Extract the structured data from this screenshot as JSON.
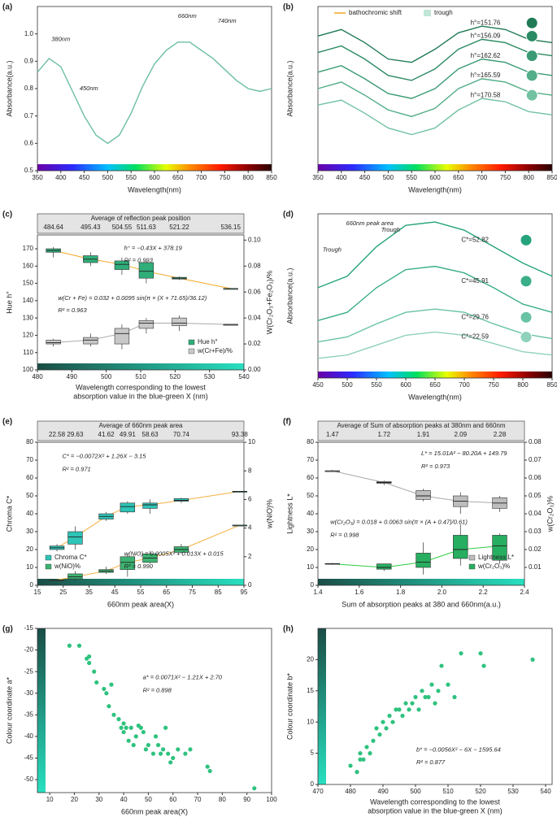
{
  "chart_data": [
    {
      "type": "line",
      "label": "(a)",
      "xlabel": "Wavelength(nm)",
      "ylabel": "Absorbance(a.u.)",
      "colorbar": "spectrum",
      "xlim": [
        350,
        850
      ],
      "xticks": [
        350,
        400,
        450,
        500,
        550,
        600,
        650,
        700,
        750,
        800,
        850
      ],
      "ylim": [
        0.5,
        1.1
      ],
      "yticks": [
        0.5,
        0.6,
        0.7,
        0.8,
        0.9,
        {
          "value": 1,
          "label": "1.0"
        }
      ],
      "x": [
        350,
        375,
        400,
        425,
        450,
        475,
        500,
        525,
        550,
        575,
        600,
        625,
        650,
        675,
        700,
        725,
        750,
        775,
        800,
        825,
        850
      ],
      "series": [
        {
          "color": "#6cbfa0",
          "values": [
            0.86,
            0.91,
            0.88,
            0.79,
            0.7,
            0.63,
            0.6,
            0.63,
            0.71,
            0.81,
            0.89,
            0.94,
            0.97,
            0.97,
            0.94,
            0.91,
            0.87,
            0.83,
            0.8,
            0.79,
            0.8
          ]
        }
      ],
      "annotations": [
        "380nm",
        "450nm",
        "660nm",
        "740nm"
      ]
    },
    {
      "type": "line",
      "label": "(b)",
      "xlabel": "Wavelength(nm)",
      "ylabel": "Absorbance(a.u.)",
      "colorbar": "spectrum",
      "legend": [
        "bathochromic shift",
        "trough"
      ],
      "xlim": [
        350,
        850
      ],
      "xticks": [
        350,
        400,
        450,
        500,
        550,
        600,
        650,
        700,
        750,
        800,
        850
      ],
      "ylim": [
        0,
        1
      ],
      "yticks": [],
      "x": [
        350,
        400,
        450,
        500,
        550,
        600,
        650,
        700,
        750,
        800,
        850
      ],
      "series": [
        {
          "name": "h°=151.76",
          "color": "#1f7a55",
          "values": [
            0.82,
            0.86,
            0.78,
            0.68,
            0.66,
            0.74,
            0.84,
            0.88,
            0.86,
            0.8,
            0.78
          ]
        },
        {
          "name": "h°=156.09",
          "color": "#2a8a62",
          "values": [
            0.72,
            0.76,
            0.68,
            0.58,
            0.55,
            0.62,
            0.74,
            0.8,
            0.78,
            0.72,
            0.7
          ]
        },
        {
          "name": "h°=162.62",
          "color": "#3a9b74",
          "values": [
            0.6,
            0.64,
            0.56,
            0.47,
            0.44,
            0.5,
            0.62,
            0.68,
            0.66,
            0.6,
            0.58
          ]
        },
        {
          "name": "h°=165.59",
          "color": "#52ad88",
          "values": [
            0.5,
            0.54,
            0.46,
            0.37,
            0.33,
            0.38,
            0.5,
            0.56,
            0.54,
            0.48,
            0.46
          ]
        },
        {
          "name": "h°=170.58",
          "color": "#72c2a2",
          "values": [
            0.4,
            0.43,
            0.35,
            0.26,
            0.22,
            0.26,
            0.37,
            0.44,
            0.42,
            0.36,
            0.34
          ]
        }
      ]
    },
    {
      "type": "box",
      "label": "(c)",
      "xlabel": [
        "Wavelength corresponding to the lowest",
        "absorption value in the blue-green X (nm)"
      ],
      "ylabel": "Hue h°",
      "y2label": "W(Cr₂O₃+Fe₂O₃)/%",
      "colorbar": "bottom",
      "legend_corner": "lower right",
      "strip_title": "Average of reflection peak position",
      "strip_values": [
        484.64,
        495.43,
        504.55,
        511.63,
        521.22,
        536.15
      ],
      "xlim": [
        480,
        540
      ],
      "xticks": [
        480,
        490,
        500,
        510,
        520,
        530,
        540
      ],
      "ylim": [
        100,
        178
      ],
      "yticks": [
        100,
        110,
        120,
        130,
        140,
        150,
        160,
        170
      ],
      "y2lim": [
        0,
        0.104
      ],
      "y2ticks": [
        {
          "value": 0,
          "label": "0.00"
        },
        0.02,
        0.04,
        0.06,
        0.08,
        {
          "value": 0.1,
          "label": "0.10"
        }
      ],
      "series": [
        {
          "name": "Hue h°",
          "color": "#2fae7a",
          "line": "#f5a623",
          "min": [
            165,
            160,
            155,
            150,
            152,
            147
          ],
          "q1": [
            168,
            162,
            158,
            153,
            152.5,
            147
          ],
          "median": [
            169,
            164,
            161,
            157,
            153,
            147
          ],
          "q3": [
            170,
            166,
            163,
            162,
            153.5,
            147
          ],
          "max": [
            171,
            168,
            165,
            163,
            154,
            147.3
          ]
        },
        {
          "name": "w(Cr+Fe)/%",
          "color": "#c8c8c8",
          "line": "#aaaaaa",
          "axis": "y2",
          "min": [
            0.018,
            0.018,
            0.016,
            0.028,
            0.03,
            0.035
          ],
          "q1": [
            0.02,
            0.02,
            0.02,
            0.032,
            0.034,
            0.035
          ],
          "median": [
            0.021,
            0.023,
            0.028,
            0.036,
            0.036,
            0.035
          ],
          "q3": [
            0.023,
            0.025,
            0.032,
            0.038,
            0.04,
            0.035
          ],
          "max": [
            0.024,
            0.028,
            0.035,
            0.04,
            0.042,
            0.035
          ]
        }
      ],
      "annotations": [
        "h° = −0.43X + 378.19",
        "R² = 0.993",
        "w(Cr + Fe) = 0.032 + 0.0095 sin(π × (X + 71.65)/36.12)",
        "R² = 0.963"
      ]
    },
    {
      "type": "line",
      "label": "(d)",
      "xlabel": "Wavelength(nm)",
      "ylabel": "Absorbance(a.u.)",
      "colorbar": "spectrum",
      "xlim": [
        450,
        850
      ],
      "xticks": [
        450,
        500,
        550,
        600,
        650,
        700,
        750,
        800,
        850
      ],
      "ylim": [
        0,
        1
      ],
      "yticks": [],
      "x": [
        450,
        500,
        550,
        600,
        650,
        700,
        750,
        800,
        850
      ],
      "series": [
        {
          "name": "C*=52.82",
          "color": "#25a37c",
          "values": [
            0.55,
            0.62,
            0.8,
            0.93,
            0.95,
            0.9,
            0.8,
            0.7,
            0.62
          ]
        },
        {
          "name": "C*=45.91",
          "color": "#3aae88",
          "values": [
            0.35,
            0.4,
            0.55,
            0.66,
            0.68,
            0.64,
            0.55,
            0.45,
            0.4
          ]
        },
        {
          "name": "C*=29.76",
          "color": "#68c2a4",
          "values": [
            0.22,
            0.25,
            0.33,
            0.4,
            0.42,
            0.4,
            0.33,
            0.27,
            0.24
          ]
        },
        {
          "name": "C*=22.59",
          "color": "#8fd1ba",
          "values": [
            0.12,
            0.14,
            0.2,
            0.26,
            0.28,
            0.26,
            0.21,
            0.16,
            0.14
          ]
        }
      ],
      "annotations": [
        "660nm peak area",
        "Trough",
        "Trough"
      ]
    },
    {
      "type": "box",
      "label": "(e)",
      "xlabel": "660nm peak area(X)",
      "ylabel": "Chroma C*",
      "y2label": "w(NiO)%",
      "colorbar": "bottom",
      "legend_corner": "lower left",
      "strip_title": "Average of 660nm peak area",
      "strip_values": [
        22.58,
        29.63,
        41.62,
        49.91,
        58.63,
        70.74,
        93.38
      ],
      "xlim": [
        15,
        95
      ],
      "xticks": [
        15,
        25,
        35,
        45,
        55,
        65,
        75,
        85,
        95
      ],
      "ylim": [
        0,
        80
      ],
      "yticks": [
        0,
        10,
        20,
        30,
        40,
        50,
        60,
        70,
        80
      ],
      "y2lim": [
        0,
        10
      ],
      "y2ticks": [
        0,
        2,
        4,
        6,
        8,
        10
      ],
      "series": [
        {
          "name": "Chroma C*",
          "color": "#2ec4b6",
          "line": "#f5b041",
          "min": [
            19,
            20,
            36,
            40,
            40,
            46,
            52.5
          ],
          "q1": [
            20,
            23,
            37,
            41,
            43,
            47,
            52.5
          ],
          "median": [
            21,
            27,
            38.5,
            44,
            45,
            47.5,
            52.5
          ],
          "q3": [
            22,
            30,
            40,
            46,
            46,
            48.5,
            52.5
          ],
          "max": [
            23,
            33,
            41,
            47,
            48,
            49,
            52.5
          ]
        },
        {
          "name": "w(NiO)%",
          "color": "#3cb371",
          "line": "#f5b041",
          "axis": "y2",
          "min": [
            0.35,
            0.3,
            0.8,
            0.6,
            1.5,
            2.2,
            4.2
          ],
          "q1": [
            0.37,
            0.45,
            0.9,
            1.1,
            1.6,
            2.3,
            4.2
          ],
          "median": [
            0.375,
            0.6,
            1,
            1.6,
            1.9,
            2.5,
            4.2
          ],
          "q3": [
            0.38,
            0.8,
            1.1,
            2,
            2.2,
            2.7,
            4.2
          ],
          "max": [
            0.4,
            1,
            1.3,
            2.2,
            2.4,
            2.9,
            4.2
          ]
        }
      ],
      "annotations": [
        "C* = −0.0072X² + 1.26X − 3.15",
        "R² = 0.971",
        "w(NiO) = 0.0005X² + 0.013X + 0.015",
        "R² = 0.990"
      ]
    },
    {
      "type": "box",
      "label": "(f)",
      "xlabel": "Sum of absorption peaks at 380 and 660nm(a.u.)",
      "ylabel": "Lightness L*",
      "y2label": "w(Cr₂O₃)%",
      "colorbar": "bottom",
      "legend_corner": "lower right",
      "strip_title": "Average of Sum of absorption peaks at 380nm and 660nm",
      "strip_values": [
        1.47,
        1.72,
        1.91,
        2.09,
        2.28
      ],
      "xlim": [
        1.4,
        2.4
      ],
      "xticks": [
        1.4,
        1.6,
        1.8,
        {
          "value": 2,
          "label": "2.0"
        },
        2.2,
        2.4
      ],
      "ylim": [
        0,
        80
      ],
      "yticks": [
        0,
        10,
        20,
        30,
        40,
        50,
        60,
        70,
        80
      ],
      "y2lim": [
        0,
        0.08
      ],
      "y2ticks": [
        0.01,
        0.02,
        0.03,
        0.04,
        0.05,
        0.06,
        0.07,
        0.08
      ],
      "series": [
        {
          "name": "Lightness L*",
          "color": "#bdbdbd",
          "line": "#aaaaaa",
          "min": [
            63.5,
            56,
            47,
            40,
            41
          ],
          "q1": [
            64,
            57,
            48,
            44,
            43
          ],
          "median": [
            64,
            57.5,
            50,
            47,
            46
          ],
          "q3": [
            64,
            58,
            53,
            50,
            49
          ],
          "max": [
            64.5,
            58.5,
            54,
            52,
            50
          ]
        },
        {
          "name": "w(Cr₂O₃)%",
          "color": "#27ae60",
          "line": "#2ecc40",
          "axis": "y2",
          "min": [
            0.0115,
            0.008,
            0.006,
            0.011,
            0.012
          ],
          "q1": [
            0.0118,
            0.009,
            0.01,
            0.015,
            0.014
          ],
          "median": [
            0.012,
            0.01,
            0.013,
            0.02,
            0.022
          ],
          "q3": [
            0.0122,
            0.012,
            0.018,
            0.028,
            0.028
          ],
          "max": [
            0.0125,
            0.012,
            0.024,
            0.034,
            0.029
          ]
        }
      ],
      "annotations": [
        "L* = 15.01A² − 80.20A + 149.79",
        "R² = 0.973",
        "w(Cr₂O₃) = 0.018 + 0.0063 sin(π × (A + 0.47)/0.61)",
        "R² = 0.998"
      ]
    },
    {
      "type": "scatter",
      "label": "(g)",
      "xlabel": "660nm peak area(X)",
      "ylabel": "Colour coordinate a*",
      "colorbar": "left",
      "color": "#2ec27e",
      "xlim": [
        5,
        100
      ],
      "xticks": [
        10,
        20,
        30,
        40,
        50,
        60,
        70,
        80,
        90,
        100
      ],
      "ylim": [
        -53,
        -15
      ],
      "yticks": [
        -15,
        -20,
        -25,
        -30,
        -35,
        -40,
        -45,
        -50
      ],
      "x": [
        18,
        22,
        25,
        26,
        26,
        28,
        29,
        32,
        33,
        34,
        35,
        36,
        38,
        39,
        40,
        40,
        41,
        42,
        43,
        44,
        45,
        46,
        47,
        48,
        49,
        50,
        52,
        53,
        54,
        55,
        56,
        57,
        58,
        59,
        60,
        62,
        65,
        67,
        74,
        75,
        93
      ],
      "values": [
        -19,
        -19,
        -22,
        -23,
        -21.5,
        -25,
        -27.5,
        -29,
        -30,
        -33,
        -28,
        -35,
        -36,
        -38,
        -37,
        -39,
        -38,
        -41,
        -38,
        -42,
        -40,
        -37.5,
        -38,
        -39,
        -43,
        -42,
        -44,
        -40,
        -42,
        -44,
        -43,
        -38,
        -44,
        -46,
        -45,
        -43,
        -44,
        -43,
        -47,
        -48,
        -52
      ],
      "annotations": [
        "a* = 0.0071X² − 1.21X + 2.70",
        "R² = 0.898"
      ]
    },
    {
      "type": "scatter",
      "label": "(h)",
      "xlabel": [
        "Wavelength corresponding to the lowest",
        "absorption value in the blue-green X (nm)"
      ],
      "ylabel": "Colour coordinate b*",
      "colorbar": "left",
      "color": "#2ec27e",
      "xlim": [
        470,
        542
      ],
      "xticks": [
        470,
        480,
        490,
        500,
        510,
        520,
        530,
        540
      ],
      "ylim": [
        0,
        25
      ],
      "yticks": [
        0,
        5,
        10,
        15,
        20
      ],
      "x": [
        480,
        482,
        483,
        483,
        484,
        485,
        486,
        487,
        488,
        489,
        490,
        491,
        492,
        493,
        494,
        495,
        496,
        497,
        498,
        499,
        500,
        501,
        502,
        503,
        504,
        505,
        506,
        507,
        508,
        510,
        512,
        514,
        520,
        521,
        536
      ],
      "values": [
        3,
        2,
        4,
        5,
        4,
        6,
        5,
        7,
        9,
        8,
        10,
        9,
        11,
        10,
        12,
        12,
        11,
        13,
        12,
        13,
        14,
        12,
        15,
        14,
        14,
        16,
        13,
        15,
        19,
        16,
        14,
        21,
        21,
        19,
        20
      ],
      "annotations": [
        "b* = −0.0056X² − 6X − 1595.64",
        "R² = 0.877"
      ]
    }
  ]
}
